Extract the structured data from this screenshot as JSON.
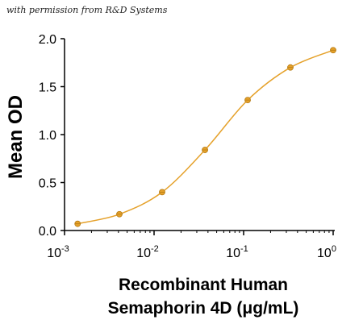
{
  "credit": "with permission from R&D Systems",
  "chart_data": {
    "type": "scatter",
    "xscale": "log",
    "xlim": [
      0.001,
      1
    ],
    "ylim": [
      0,
      2
    ],
    "xticks": [
      {
        "value": 0.001,
        "base": "10",
        "exp": "-3"
      },
      {
        "value": 0.01,
        "base": "10",
        "exp": "-2"
      },
      {
        "value": 0.1,
        "base": "10",
        "exp": "-1"
      },
      {
        "value": 1,
        "base": "10",
        "exp": "0"
      }
    ],
    "yticks": [
      "0.0",
      "0.5",
      "1.0",
      "1.5",
      "2.0"
    ],
    "ylabel": "Mean OD",
    "xlabel_line1": "Recombinant Human",
    "xlabel_line2": "Semaphorin 4D (μg/mL)",
    "color": "#e5a12a",
    "points": [
      {
        "x": 0.0014,
        "y": 0.07
      },
      {
        "x": 0.0041,
        "y": 0.17
      },
      {
        "x": 0.0123,
        "y": 0.4
      },
      {
        "x": 0.037,
        "y": 0.84
      },
      {
        "x": 0.111,
        "y": 1.36
      },
      {
        "x": 0.333,
        "y": 1.7
      },
      {
        "x": 1.0,
        "y": 1.88
      }
    ]
  }
}
